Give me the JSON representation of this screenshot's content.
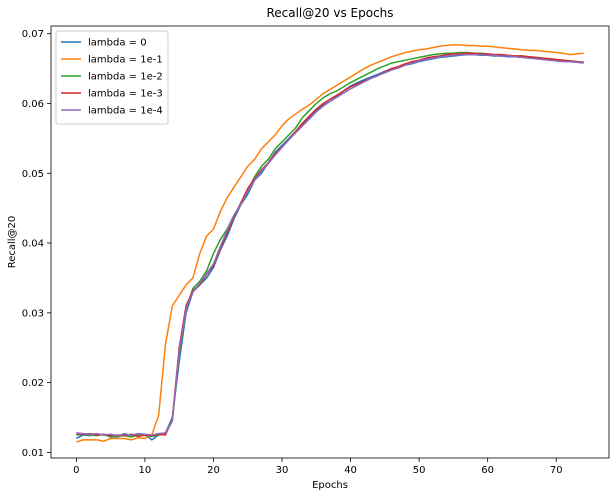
{
  "chart_data": {
    "type": "line",
    "title": "Recall@20 vs Epochs",
    "xlabel": "Epochs",
    "ylabel": "Recall@20",
    "xlim": [
      -3.7,
      77.7
    ],
    "ylim": [
      0.0092,
      0.0711
    ],
    "xticks": [
      0,
      10,
      20,
      30,
      40,
      50,
      60,
      70
    ],
    "yticks": [
      0.01,
      0.02,
      0.03,
      0.04,
      0.05,
      0.06,
      0.07
    ],
    "ytick_labels": [
      "0.01",
      "0.02",
      "0.03",
      "0.04",
      "0.05",
      "0.06",
      "0.07"
    ],
    "grid": false,
    "legend_position": "top-left",
    "series": [
      {
        "name": "lambda = 0",
        "color": "#1f77b4",
        "values": [
          0.012,
          0.0125,
          0.0124,
          0.0126,
          0.0125,
          0.0123,
          0.0122,
          0.0127,
          0.0124,
          0.0125,
          0.0126,
          0.0118,
          0.0125,
          0.0128,
          0.015,
          0.023,
          0.03,
          0.033,
          0.034,
          0.035,
          0.0365,
          0.039,
          0.041,
          0.0435,
          0.0455,
          0.047,
          0.049,
          0.05,
          0.0515,
          0.053,
          0.054,
          0.055,
          0.056,
          0.057,
          0.058,
          0.059,
          0.0598,
          0.0603,
          0.061,
          0.0618,
          0.0625,
          0.063,
          0.0634,
          0.0638,
          0.0642,
          0.0646,
          0.065,
          0.0652,
          0.0655,
          0.0657,
          0.066,
          0.0662,
          0.0664,
          0.0666,
          0.0667,
          0.0668,
          0.0669,
          0.067,
          0.067,
          0.0669,
          0.0669,
          0.0668,
          0.0668,
          0.0667,
          0.0667,
          0.0666,
          0.0665,
          0.0665,
          0.0664,
          0.0663,
          0.0662,
          0.0661,
          0.066,
          0.0659,
          0.0658
        ]
      },
      {
        "name": "lambda = 1e-1",
        "color": "#ff7f0e",
        "values": [
          0.0115,
          0.0118,
          0.0118,
          0.0118,
          0.0116,
          0.012,
          0.012,
          0.012,
          0.0118,
          0.0121,
          0.012,
          0.0125,
          0.0153,
          0.0255,
          0.031,
          0.0325,
          0.034,
          0.035,
          0.0385,
          0.041,
          0.042,
          0.0445,
          0.0465,
          0.048,
          0.0495,
          0.051,
          0.052,
          0.0535,
          0.0545,
          0.0555,
          0.0568,
          0.0578,
          0.0585,
          0.0592,
          0.0598,
          0.0606,
          0.0614,
          0.062,
          0.0626,
          0.0632,
          0.0638,
          0.0644,
          0.065,
          0.0655,
          0.0659,
          0.0663,
          0.0667,
          0.067,
          0.0673,
          0.0675,
          0.0677,
          0.0678,
          0.068,
          0.0682,
          0.0683,
          0.0684,
          0.0684,
          0.0683,
          0.0683,
          0.0682,
          0.0682,
          0.0681,
          0.068,
          0.0679,
          0.0678,
          0.0677,
          0.0676,
          0.0676,
          0.0675,
          0.0674,
          0.0673,
          0.0672,
          0.067,
          0.0671,
          0.0672
        ]
      },
      {
        "name": "lambda = 1e-2",
        "color": "#2ca02c",
        "values": [
          0.0125,
          0.0126,
          0.0125,
          0.0124,
          0.0126,
          0.0122,
          0.0123,
          0.0124,
          0.0122,
          0.0125,
          0.0124,
          0.0123,
          0.0125,
          0.0127,
          0.0145,
          0.024,
          0.0305,
          0.0335,
          0.0345,
          0.036,
          0.0385,
          0.0405,
          0.042,
          0.044,
          0.0455,
          0.0475,
          0.0495,
          0.051,
          0.052,
          0.0535,
          0.0545,
          0.0555,
          0.0565,
          0.058,
          0.059,
          0.06,
          0.0608,
          0.0614,
          0.0618,
          0.0624,
          0.063,
          0.0635,
          0.064,
          0.0645,
          0.065,
          0.0654,
          0.0658,
          0.066,
          0.0662,
          0.0664,
          0.0666,
          0.0668,
          0.067,
          0.0671,
          0.0672,
          0.0672,
          0.0673,
          0.0673,
          0.0672,
          0.0672,
          0.0671,
          0.067,
          0.067,
          0.0669,
          0.0668,
          0.0668,
          0.0667,
          0.0666,
          0.0665,
          0.0664,
          0.0663,
          0.0662,
          0.0661,
          0.066,
          0.0659
        ]
      },
      {
        "name": "lambda = 1e-3",
        "color": "#d62728",
        "values": [
          0.0127,
          0.0126,
          0.0127,
          0.0125,
          0.0126,
          0.0124,
          0.0125,
          0.0124,
          0.0126,
          0.0123,
          0.0125,
          0.0124,
          0.0126,
          0.0125,
          0.0148,
          0.025,
          0.031,
          0.0332,
          0.034,
          0.0355,
          0.0368,
          0.0392,
          0.0415,
          0.0438,
          0.0458,
          0.0478,
          0.0492,
          0.0505,
          0.0515,
          0.0528,
          0.0538,
          0.0548,
          0.056,
          0.0572,
          0.0582,
          0.0592,
          0.06,
          0.0606,
          0.0612,
          0.0618,
          0.0624,
          0.0628,
          0.0632,
          0.0636,
          0.064,
          0.0645,
          0.065,
          0.0653,
          0.0657,
          0.066,
          0.0662,
          0.0665,
          0.0667,
          0.0668,
          0.067,
          0.0671,
          0.0671,
          0.0672,
          0.0672,
          0.0671,
          0.0671,
          0.067,
          0.067,
          0.0669,
          0.0668,
          0.0668,
          0.0667,
          0.0666,
          0.0665,
          0.0664,
          0.0663,
          0.0662,
          0.0661,
          0.066,
          0.0659
        ]
      },
      {
        "name": "lambda = 1e-4",
        "color": "#9467bd",
        "values": [
          0.0128,
          0.0127,
          0.0126,
          0.0127,
          0.0125,
          0.0126,
          0.0124,
          0.0126,
          0.0125,
          0.0127,
          0.0126,
          0.0125,
          0.0127,
          0.0128,
          0.0146,
          0.0245,
          0.0306,
          0.033,
          0.0342,
          0.0356,
          0.037,
          0.0395,
          0.0418,
          0.044,
          0.0456,
          0.0474,
          0.049,
          0.0503,
          0.0514,
          0.0526,
          0.0537,
          0.0548,
          0.0558,
          0.0568,
          0.0578,
          0.0588,
          0.0596,
          0.0603,
          0.0609,
          0.0615,
          0.0621,
          0.0626,
          0.0631,
          0.0636,
          0.064,
          0.0644,
          0.0648,
          0.0651,
          0.0655,
          0.0658,
          0.0661,
          0.0663,
          0.0665,
          0.0667,
          0.0668,
          0.0669,
          0.067,
          0.067,
          0.067,
          0.067,
          0.0669,
          0.0669,
          0.0668,
          0.0668,
          0.0667,
          0.0666,
          0.0665,
          0.0664,
          0.0663,
          0.0662,
          0.0661,
          0.066,
          0.066,
          0.0659,
          0.0658
        ]
      }
    ]
  }
}
